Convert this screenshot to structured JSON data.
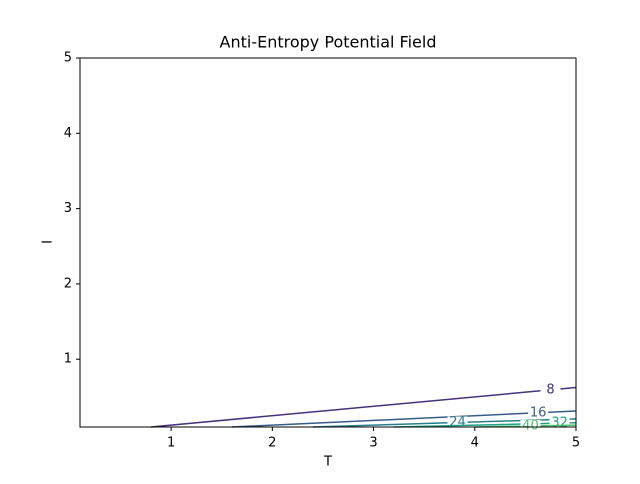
{
  "chart_data": {
    "type": "contour",
    "title": "Anti-Entropy Potential Field",
    "x_label": "T",
    "y_label": "I",
    "xlim": [
      0.1,
      5
    ],
    "ylim": [
      0.1,
      5
    ],
    "xticks": [
      1,
      2,
      3,
      4,
      5
    ],
    "yticks": [
      1,
      2,
      3,
      4,
      5
    ],
    "series": [
      {
        "name": "8",
        "level": 8,
        "color": "#46327e",
        "x": [
          0.8,
          5
        ],
        "values": [
          0.1,
          0.625
        ]
      },
      {
        "name": "16",
        "level": 16,
        "color": "#365c8d",
        "x": [
          1.6,
          5
        ],
        "values": [
          0.1,
          0.3125
        ]
      },
      {
        "name": "24",
        "level": 24,
        "color": "#277f8e",
        "x": [
          2.4,
          5
        ],
        "values": [
          0.1,
          0.2083
        ]
      },
      {
        "name": "32",
        "level": 32,
        "color": "#1fa187",
        "x": [
          3.2,
          5
        ],
        "values": [
          0.1,
          0.15625
        ]
      },
      {
        "name": "40",
        "level": 40,
        "color": "#4ac16d",
        "x": [
          4.0,
          5
        ],
        "values": [
          0.1,
          0.125
        ]
      }
    ]
  }
}
